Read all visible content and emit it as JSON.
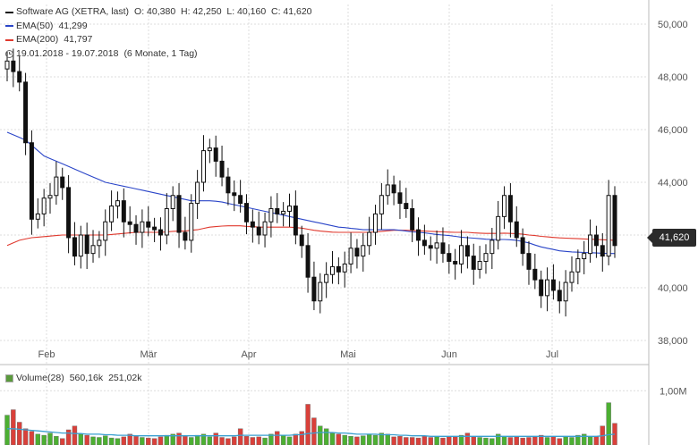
{
  "header": {
    "title": "Software AG (XETRA, last)",
    "ohlc": "O: 40,380  H: 42,250  L: 40,160  C: 41,620",
    "ema50_label": "EMA(50)",
    "ema50_value": "41,299",
    "ema200_label": "EMA(200)",
    "ema200_value": "41,797",
    "range": "19.01.2018 - 19.07.2018",
    "range_note": "(6 Monate, 1 Tag)"
  },
  "volume_legend": {
    "label": "Volume(28)",
    "value1": "560,16k",
    "value2": "251,02k"
  },
  "last_price_badge": "41,620",
  "colors": {
    "up": "#4caf32",
    "down": "#d9403a",
    "ema50": "#2a45c8",
    "ema200": "#e0392e",
    "candle": "#111111",
    "grid": "#dcdcdc",
    "volume_avg": "#3aa0d0"
  },
  "chart_data": {
    "type": "candlestick",
    "y_axis": {
      "min": 37500,
      "max": 50500,
      "ticks": [
        "38,000",
        "40,000",
        "42,000",
        "44,000",
        "46,000",
        "48,000",
        "50,000"
      ],
      "tick_values": [
        38,
        40,
        42,
        44,
        46,
        48,
        50
      ]
    },
    "x_axis": {
      "month_labels": [
        "Feb",
        "Mär",
        "Apr",
        "Mai",
        "Jun",
        "Jul"
      ]
    },
    "volume_axis": {
      "ticks": [
        "1,00M"
      ]
    },
    "series": [
      {
        "name": "Software AG",
        "close": [
          48.6,
          48.2,
          47.8,
          45.5,
          42.6,
          42.8,
          43.4,
          43.5,
          44.2,
          43.8,
          41.9,
          41.2,
          42.0,
          41.3,
          41.6,
          41.8,
          42.5,
          43.1,
          43.3,
          42.5,
          42.4,
          42.1,
          42.5,
          42.3,
          42.2,
          42.0,
          43.0,
          43.5,
          42.1,
          41.8,
          43.2,
          44.0,
          45.2,
          45.3,
          44.8,
          44.2,
          43.6,
          43.5,
          43.2,
          42.5,
          42.3,
          42.0,
          42.5,
          43.0,
          42.8,
          42.9,
          43.1,
          42.0,
          41.6,
          40.4,
          39.5,
          40.2,
          40.5,
          40.8,
          40.6,
          40.9,
          41.5,
          41.2,
          41.6,
          42.1,
          42.8,
          43.5,
          43.9,
          43.6,
          43.2,
          43.0,
          42.2,
          41.8,
          41.6,
          41.5,
          41.7,
          41.3,
          41.0,
          40.9,
          41.6,
          41.2,
          40.7,
          41.0,
          41.3,
          41.8,
          42.7,
          43.5,
          42.5,
          41.9,
          41.3,
          40.7,
          40.3,
          39.7,
          40.3,
          39.9,
          39.5,
          40.2,
          40.6,
          41.1,
          41.3,
          42.0,
          41.6,
          41.2,
          43.5,
          41.6
        ]
      }
    ],
    "ema50": [
      45.9,
      45.8,
      45.7,
      45.6,
      45.4,
      45.2,
      45.0,
      44.9,
      44.8,
      44.7,
      44.6,
      44.5,
      44.4,
      44.3,
      44.2,
      44.1,
      44.0,
      43.95,
      43.9,
      43.85,
      43.8,
      43.75,
      43.7,
      43.65,
      43.6,
      43.55,
      43.5,
      43.45,
      43.4,
      43.35,
      43.3,
      43.3,
      43.3,
      43.3,
      43.28,
      43.25,
      43.2,
      43.15,
      43.1,
      43.05,
      43.0,
      42.95,
      42.9,
      42.85,
      42.8,
      42.75,
      42.7,
      42.65,
      42.6,
      42.55,
      42.5,
      42.45,
      42.4,
      42.35,
      42.3,
      42.28,
      42.25,
      42.23,
      42.2,
      42.2,
      42.2,
      42.2,
      42.2,
      42.2,
      42.18,
      42.15,
      42.12,
      42.1,
      42.08,
      42.05,
      42.02,
      42.0,
      41.98,
      41.95,
      41.92,
      41.9,
      41.88,
      41.86,
      41.84,
      41.83,
      41.83,
      41.83,
      41.82,
      41.8,
      41.75,
      41.7,
      41.62,
      41.55,
      41.5,
      41.45,
      41.4,
      41.38,
      41.36,
      41.35,
      41.34,
      41.33,
      41.32,
      41.31,
      41.3,
      41.3
    ],
    "ema200": [
      41.6,
      41.7,
      41.8,
      41.85,
      41.9,
      41.92,
      41.94,
      41.96,
      41.98,
      42.0,
      42.0,
      42.0,
      42.0,
      42.0,
      42.0,
      42.0,
      42.0,
      42.02,
      42.04,
      42.06,
      42.08,
      42.1,
      42.1,
      42.1,
      42.1,
      42.1,
      42.12,
      42.14,
      42.15,
      42.15,
      42.18,
      42.2,
      42.25,
      42.3,
      42.32,
      42.34,
      42.35,
      42.35,
      42.35,
      42.33,
      42.32,
      42.3,
      42.3,
      42.3,
      42.3,
      42.3,
      42.3,
      42.28,
      42.26,
      42.22,
      42.18,
      42.15,
      42.13,
      42.11,
      42.1,
      42.1,
      42.1,
      42.1,
      42.1,
      42.1,
      42.12,
      42.14,
      42.16,
      42.18,
      42.18,
      42.18,
      42.17,
      42.16,
      42.15,
      42.14,
      42.13,
      42.12,
      42.11,
      42.1,
      42.1,
      42.1,
      42.08,
      42.07,
      42.06,
      42.06,
      42.06,
      42.07,
      42.06,
      42.05,
      42.03,
      42.0,
      41.98,
      41.95,
      41.93,
      41.91,
      41.89,
      41.88,
      41.87,
      41.86,
      41.85,
      41.84,
      41.83,
      41.82,
      41.81,
      41.8
    ],
    "volume": [
      0.55,
      0.65,
      0.42,
      0.3,
      0.25,
      0.2,
      0.18,
      0.22,
      0.16,
      0.12,
      0.28,
      0.35,
      0.2,
      0.18,
      0.15,
      0.14,
      0.17,
      0.13,
      0.12,
      0.15,
      0.2,
      0.16,
      0.14,
      0.13,
      0.12,
      0.15,
      0.18,
      0.2,
      0.22,
      0.16,
      0.14,
      0.18,
      0.2,
      0.15,
      0.22,
      0.14,
      0.12,
      0.15,
      0.3,
      0.16,
      0.14,
      0.15,
      0.13,
      0.2,
      0.25,
      0.18,
      0.15,
      0.2,
      0.25,
      0.75,
      0.5,
      0.35,
      0.3,
      0.22,
      0.2,
      0.18,
      0.16,
      0.15,
      0.17,
      0.2,
      0.18,
      0.22,
      0.2,
      0.15,
      0.16,
      0.14,
      0.14,
      0.13,
      0.16,
      0.14,
      0.15,
      0.13,
      0.16,
      0.15,
      0.18,
      0.22,
      0.15,
      0.14,
      0.13,
      0.12,
      0.2,
      0.16,
      0.14,
      0.15,
      0.13,
      0.14,
      0.15,
      0.18,
      0.14,
      0.16,
      0.12,
      0.15,
      0.14,
      0.18,
      0.2,
      0.15,
      0.16,
      0.35,
      0.78,
      0.4
    ],
    "volume_avg": [
      0.3,
      0.3,
      0.29,
      0.28,
      0.27,
      0.26,
      0.25,
      0.24,
      0.23,
      0.22,
      0.22,
      0.21,
      0.21,
      0.2,
      0.2,
      0.2,
      0.19,
      0.19,
      0.18,
      0.18,
      0.18,
      0.17,
      0.17,
      0.17,
      0.17,
      0.17,
      0.17,
      0.17,
      0.17,
      0.17,
      0.17,
      0.17,
      0.17,
      0.17,
      0.17,
      0.17,
      0.17,
      0.17,
      0.18,
      0.18,
      0.18,
      0.18,
      0.18,
      0.18,
      0.18,
      0.18,
      0.18,
      0.19,
      0.19,
      0.21,
      0.22,
      0.23,
      0.23,
      0.23,
      0.22,
      0.22,
      0.21,
      0.2,
      0.2,
      0.2,
      0.2,
      0.19,
      0.19,
      0.19,
      0.18,
      0.18,
      0.17,
      0.17,
      0.17,
      0.16,
      0.16,
      0.16,
      0.16,
      0.16,
      0.16,
      0.16,
      0.16,
      0.16,
      0.16,
      0.16,
      0.16,
      0.16,
      0.16,
      0.16,
      0.16,
      0.16,
      0.16,
      0.16,
      0.16,
      0.16,
      0.16,
      0.16,
      0.16,
      0.16,
      0.16,
      0.16,
      0.16,
      0.17,
      0.19,
      0.2
    ]
  }
}
